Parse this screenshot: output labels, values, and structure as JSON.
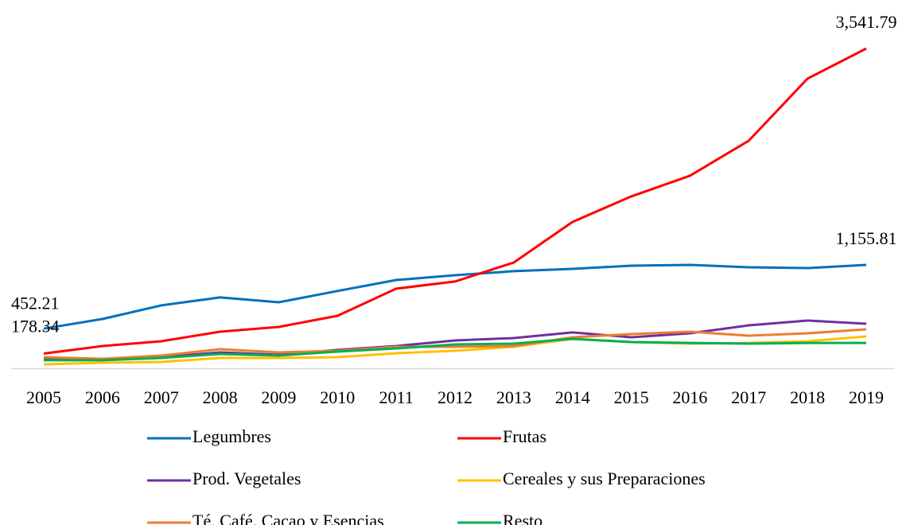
{
  "chart_data": {
    "type": "line",
    "categories": [
      "2005",
      "2006",
      "2007",
      "2008",
      "2009",
      "2010",
      "2011",
      "2012",
      "2013",
      "2014",
      "2015",
      "2016",
      "2017",
      "2018",
      "2019"
    ],
    "series": [
      {
        "name": "Legumbres",
        "color": "#0070c0",
        "values": [
          452.21,
          560,
          710,
          797,
          744,
          868,
          989,
          1042,
          1087,
          1112,
          1147,
          1156,
          1130,
          1121,
          1155.81
        ],
        "value_labels": [
          "452.21",
          null,
          null,
          null,
          null,
          null,
          null,
          null,
          null,
          null,
          null,
          null,
          null,
          null,
          "1,155.81"
        ]
      },
      {
        "name": "Frutas",
        "color": "#ff0000",
        "values": [
          178.34,
          261,
          314,
          419,
          472,
          595,
          894,
          973,
          1182,
          1630,
          1911,
          2139,
          2525,
          3209,
          3541.79
        ],
        "value_labels": [
          "178.34",
          null,
          null,
          null,
          null,
          null,
          null,
          null,
          null,
          null,
          null,
          null,
          null,
          null,
          "3,541.79"
        ]
      },
      {
        "name": "Prod. Vegetales",
        "color": "#7030a0",
        "values": [
          121,
          112,
          139,
          191,
          165,
          218,
          261,
          323,
          349,
          411,
          358,
          402,
          489,
          542,
          507
        ]
      },
      {
        "name": "Cereales y sus Preparaciones",
        "color": "#ffc000",
        "values": [
          60,
          77,
          86,
          130,
          130,
          139,
          182,
          209,
          253,
          340,
          305,
          288,
          296,
          314,
          367
        ]
      },
      {
        "name": "Té, Café, Cacao y Esencias",
        "color": "#ed7d31",
        "values": [
          139,
          121,
          156,
          226,
          191,
          209,
          253,
          253,
          261,
          358,
          393,
          419,
          375,
          402,
          446
        ]
      },
      {
        "name": "Resto",
        "color": "#00b050",
        "values": [
          104,
          104,
          130,
          174,
          156,
          200,
          235,
          279,
          288,
          340,
          305,
          296,
          288,
          296,
          296
        ]
      }
    ]
  }
}
